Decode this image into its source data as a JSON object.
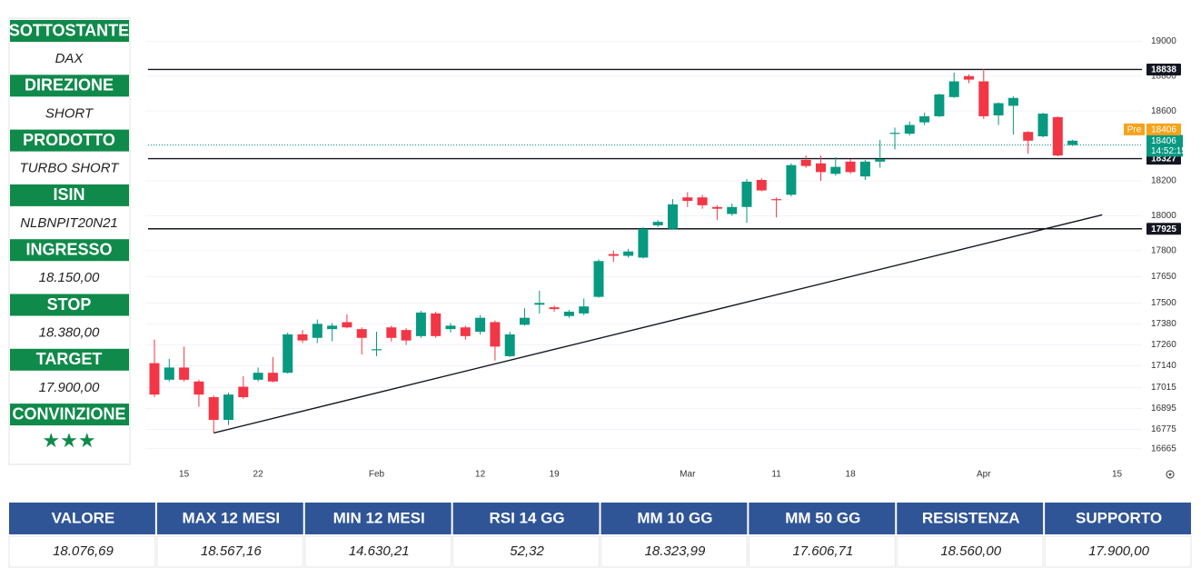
{
  "panel": [
    {
      "label": "SOTTOSTANTE",
      "value": "DAX"
    },
    {
      "label": "DIREZIONE",
      "value": "SHORT"
    },
    {
      "label": "PRODOTTO",
      "value": "TURBO SHORT"
    },
    {
      "label": "ISIN",
      "value": "NLBNPIT20N21"
    },
    {
      "label": "INGRESSO",
      "value": "18.150,00"
    },
    {
      "label": "STOP",
      "value": "18.380,00"
    },
    {
      "label": "TARGET",
      "value": "17.900,00"
    },
    {
      "label": "CONVINZIONE",
      "value": "★★★"
    }
  ],
  "chart_data": {
    "type": "candlestick",
    "categories": [
      null,
      null,
      "15",
      null,
      null,
      null,
      null,
      "22",
      null,
      null,
      null,
      null,
      null,
      null,
      null,
      "Feb",
      null,
      null,
      null,
      null,
      null,
      null,
      "12",
      null,
      null,
      null,
      null,
      "19",
      null,
      null,
      null,
      null,
      null,
      null,
      null,
      null,
      "Mar",
      null,
      null,
      null,
      null,
      null,
      "11",
      null,
      null,
      null,
      null,
      "18",
      null,
      null,
      null,
      null,
      null,
      null,
      null,
      null,
      "Apr",
      null,
      null,
      null,
      null,
      null,
      null,
      null,
      null,
      "15",
      null
    ],
    "open": [
      17155,
      17060,
      17130,
      17050,
      16960,
      16830,
      17020,
      17060,
      17100,
      17100,
      17320,
      17300,
      17350,
      17390,
      17350,
      17230,
      17360,
      17345,
      17310,
      17440,
      17350,
      17360,
      17335,
      17390,
      17195,
      17375,
      17490,
      17475,
      17425,
      17440,
      17535,
      17780,
      17770,
      17760,
      17945,
      17925,
      18105,
      18105,
      18050,
      18010,
      18050,
      18205,
      18095,
      18120,
      18320,
      18300,
      18240,
      18310,
      18225,
      18310,
      18470,
      18470,
      18535,
      18570,
      18680,
      18800,
      18770,
      18575,
      18630,
      18480,
      18455,
      18565,
      18405,
      null,
      null,
      null,
      null
    ],
    "high": [
      17290,
      17180,
      17250,
      17060,
      16970,
      16985,
      17080,
      17130,
      17190,
      17330,
      17345,
      17405,
      17385,
      17435,
      17360,
      17335,
      17370,
      17355,
      17455,
      17450,
      17385,
      17370,
      17430,
      17400,
      17335,
      17470,
      17570,
      17485,
      17460,
      17525,
      17750,
      17800,
      17810,
      17935,
      17975,
      18095,
      18135,
      18120,
      18060,
      18070,
      18210,
      18215,
      18105,
      18300,
      18345,
      18345,
      18335,
      18325,
      18320,
      18435,
      18505,
      18540,
      18590,
      18700,
      18820,
      18810,
      18840,
      18650,
      18685,
      18485,
      18590,
      18570,
      18435,
      null,
      null,
      null,
      null
    ],
    "low": [
      16960,
      17050,
      17050,
      16905,
      16755,
      16800,
      16950,
      17050,
      17045,
      17095,
      17270,
      17270,
      17280,
      17355,
      17205,
      17195,
      17280,
      17260,
      17300,
      17300,
      17330,
      17290,
      17320,
      17170,
      17190,
      17370,
      17440,
      17450,
      17415,
      17430,
      17530,
      17735,
      17760,
      17755,
      17935,
      17920,
      18050,
      18040,
      17975,
      18000,
      17960,
      18140,
      17990,
      18110,
      18275,
      18200,
      18230,
      18240,
      18205,
      18275,
      18380,
      18460,
      18520,
      18565,
      18675,
      18760,
      18555,
      18520,
      18465,
      18355,
      18450,
      18340,
      18400,
      null,
      null,
      null,
      null
    ],
    "close": [
      16975,
      17130,
      17060,
      16975,
      16830,
      16975,
      16960,
      17100,
      17050,
      17320,
      17285,
      17380,
      17370,
      17360,
      17300,
      17235,
      17300,
      17285,
      17445,
      17310,
      17370,
      17310,
      17415,
      17250,
      17320,
      17415,
      17500,
      17465,
      17450,
      17480,
      17740,
      17770,
      17795,
      17925,
      17965,
      18065,
      18085,
      18060,
      18040,
      18050,
      18195,
      18145,
      18090,
      18290,
      18285,
      18250,
      18280,
      18250,
      18310,
      18325,
      18475,
      18520,
      18570,
      18695,
      18770,
      18780,
      18570,
      18645,
      18675,
      18430,
      18585,
      18345,
      18430,
      null,
      null,
      null,
      null
    ],
    "up_color": "#089981",
    "down_color": "#f23645",
    "ylim": [
      16580,
      19080
    ],
    "yticks": [
      16665,
      16775,
      16895,
      17015,
      17140,
      17260,
      17380,
      17500,
      17650,
      17800,
      18000,
      18200,
      18400,
      18600,
      18800,
      19000
    ],
    "grid": true,
    "price_lines": [
      {
        "value": 18838,
        "color": "#131722"
      },
      {
        "value": 18327,
        "color": "#131722"
      },
      {
        "value": 17925,
        "color": "#131722"
      }
    ],
    "pre_price": {
      "label": "Pre",
      "value": 18406,
      "color": "#f7a21b"
    },
    "last_price": {
      "value": 18406,
      "time": "14:52:15",
      "color": "#089981"
    },
    "trendline": {
      "x": [
        4,
        64
      ],
      "y": [
        16755,
        18005
      ],
      "color": "#131722"
    }
  },
  "table": {
    "headers": [
      "VALORE",
      "MAX 12 MESI",
      "MIN 12 MESI",
      "RSI 14 GG",
      "MM 10 GG",
      "MM 50 GG",
      "RESISTENZA",
      "SUPPORTO"
    ],
    "values": [
      "18.076,69",
      "18.567,16",
      "14.630,21",
      "52,32",
      "18.323,99",
      "17.606,71",
      "18.560,00",
      "17.900,00"
    ]
  }
}
